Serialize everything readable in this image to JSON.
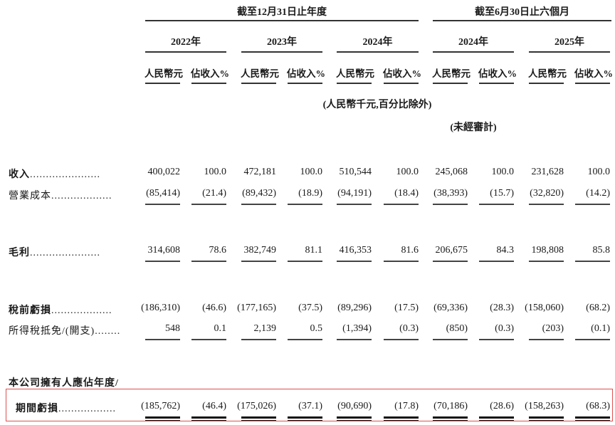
{
  "header": {
    "period_full_year": "截至12月31日止年度",
    "period_six_months": "截至6月30日止六個月",
    "years": [
      "2022年",
      "2023年",
      "2024年",
      "2024年",
      "2025年"
    ],
    "col_rmb": "人民幣元",
    "col_pct": "佔收入%",
    "unit_note": "(人民幣千元,百分比除外)",
    "unaudited_note": "(未經審計)"
  },
  "rows": [
    {
      "label": "收入",
      "dots": "......................",
      "bold": true,
      "values": [
        "400,022",
        "100.0",
        "472,181",
        "100.0",
        "510,544",
        "100.0",
        "245,068",
        "100.0",
        "231,628",
        "100.0"
      ]
    },
    {
      "label": "營業成本",
      "dots": "...................",
      "bold": false,
      "values": [
        "(85,414)",
        "(21.4)",
        "(89,432)",
        "(18.9)",
        "(94,191)",
        "(18.4)",
        "(38,393)",
        "(15.7)",
        "(32,820)",
        "(14.2)"
      ]
    },
    {
      "label": "毛利",
      "dots": "......................",
      "bold": true,
      "values": [
        "314,608",
        "78.6",
        "382,749",
        "81.1",
        "416,353",
        "81.6",
        "206,675",
        "84.3",
        "198,808",
        "85.8"
      ]
    },
    {
      "label": "稅前虧損",
      "dots": "...................",
      "bold": true,
      "values": [
        "(186,310)",
        "(46.6)",
        "(177,165)",
        "(37.5)",
        "(89,296)",
        "(17.5)",
        "(69,336)",
        "(28.3)",
        "(158,060)",
        "(68.2)"
      ]
    },
    {
      "label": "所得稅抵免/(開支)",
      "dots": "........",
      "bold": false,
      "values": [
        "548",
        "0.1",
        "2,139",
        "0.5",
        "(1,394)",
        "(0.3)",
        "(850)",
        "(0.3)",
        "(203)",
        "(0.1)"
      ]
    },
    {
      "label": "本公司擁有人應佔年度/",
      "dots": "",
      "bold": true,
      "values": []
    },
    {
      "label": "期間虧損",
      "dots": "..................",
      "bold": true,
      "values": [
        "(185,762)",
        "(46.4)",
        "(175,026)",
        "(37.1)",
        "(90,690)",
        "(17.8)",
        "(70,186)",
        "(28.6)",
        "(158,263)",
        "(68.3)"
      ]
    }
  ],
  "colors": {
    "highlight_box": "#e05050"
  }
}
